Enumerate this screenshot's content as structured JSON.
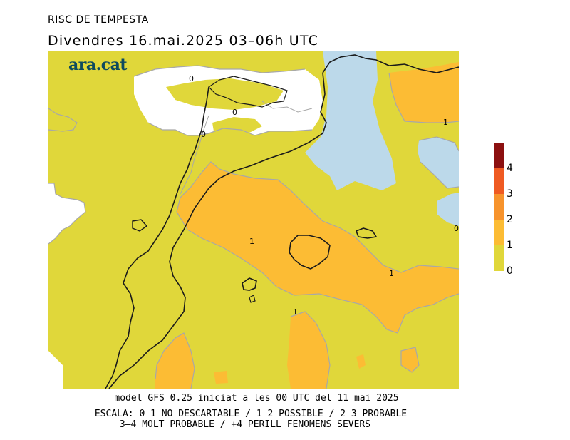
{
  "header": {
    "title": "RISC DE TEMPESTA",
    "subtitle": "Divendres  16.mai.2025 03–06h UTC"
  },
  "brand": {
    "logo_text": "ara.cat"
  },
  "map": {
    "contour_labels": [
      "0",
      "0",
      "0",
      "1",
      "1",
      "1",
      "1",
      "0"
    ],
    "colors": {
      "risk_0_1": "#e0d73a",
      "risk_1_2": "#fcbc34",
      "risk_2_3": "#f7932c",
      "risk_3_4": "#ef5a22",
      "risk_4_plus": "#8c1010",
      "sea": "#bcd9ea",
      "no_data": "#ffffff",
      "coast": "#1a1a1a",
      "contour": "#a8a8a8"
    }
  },
  "legend": {
    "labels": [
      "4",
      "3",
      "2",
      "1",
      "0"
    ],
    "colors": [
      "#8c1010",
      "#ef5a22",
      "#f7932c",
      "#fcbc34",
      "#e0d73a"
    ]
  },
  "footer": {
    "model_line": "model GFS 0.25 iniciat a les 00 UTC del 11 mai 2025",
    "scale_line1": "ESCALA: 0–1 NO DESCARTABLE / 1–2 POSSIBLE / 2–3 PROBABLE",
    "scale_line2": "3–4 MOLT PROBABLE / +4 PERILL FENOMENS SEVERS"
  }
}
